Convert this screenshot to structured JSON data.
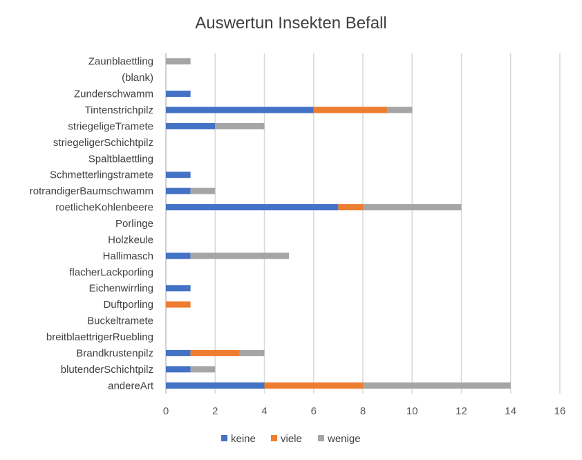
{
  "chart_data": {
    "type": "bar",
    "orientation": "horizontal",
    "stacked": true,
    "title": "Auswertun Insekten Befall",
    "categories": [
      "andereArt",
      "blutenderSchichtpilz",
      "Brandkrustenpilz",
      "breitblaettrigerRuebling",
      "Buckeltramete",
      "Duftporling",
      "Eichenwirrling",
      "flacherLackporling",
      "Hallimasch",
      "Holzkeule",
      "Porlinge",
      "roetlicheKohlenbeere",
      "rotrandigerBaumschwamm",
      "Schmetterlingstramete",
      "Spaltblaettling",
      "striegeligerSchichtpilz",
      "striegeligeTramete",
      "Tintenstrichpilz",
      "Zunderschwamm",
      "(blank)",
      "Zaunblaettling"
    ],
    "series": [
      {
        "name": "keine",
        "color": "#4472C4",
        "values": [
          4,
          1,
          1,
          0,
          0,
          0,
          1,
          0,
          1,
          0,
          0,
          7,
          1,
          1,
          0,
          0,
          2,
          6,
          1,
          0,
          0
        ]
      },
      {
        "name": "viele",
        "color": "#ED7D31",
        "values": [
          4,
          0,
          2,
          0,
          0,
          1,
          0,
          0,
          0,
          0,
          0,
          1,
          0,
          0,
          0,
          0,
          0,
          3,
          0,
          0,
          0
        ]
      },
      {
        "name": "wenige",
        "color": "#A5A5A5",
        "values": [
          6,
          1,
          1,
          0,
          0,
          0,
          0,
          0,
          4,
          0,
          0,
          4,
          1,
          0,
          0,
          0,
          2,
          1,
          0,
          0,
          1
        ]
      }
    ],
    "xlim": [
      0,
      16
    ],
    "xticks": [
      0,
      2,
      4,
      6,
      8,
      10,
      12,
      14,
      16
    ],
    "grid": true,
    "legend_position": "bottom"
  }
}
